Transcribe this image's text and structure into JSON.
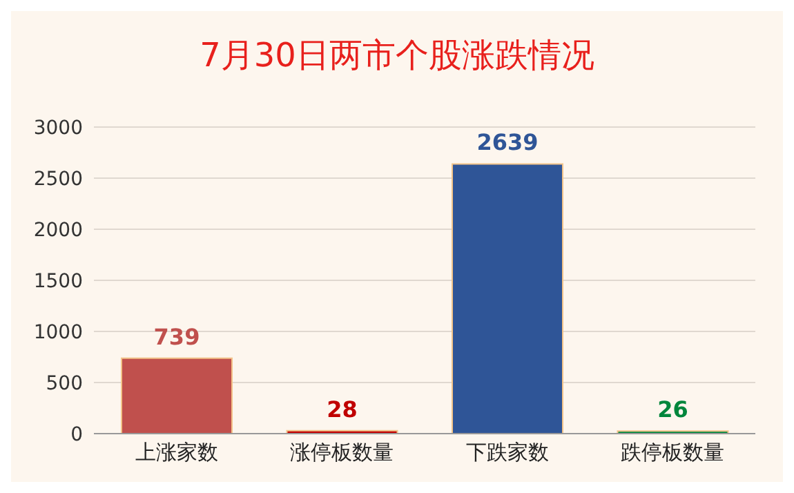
{
  "chart_data": {
    "type": "bar",
    "title": "7月30日两市个股涨跌情况",
    "categories": [
      "上涨家数",
      "涨停板数量",
      "下跌家数",
      "跌停板数量"
    ],
    "values": [
      739,
      28,
      2639,
      26
    ],
    "colors": [
      "#c0504d",
      "#c00000",
      "#2f5597",
      "#00863c"
    ],
    "ylim": [
      0,
      3000
    ],
    "yticks": [
      0,
      500,
      1000,
      1500,
      2000,
      2500,
      3000
    ],
    "grid": "y",
    "data_labels": true
  }
}
